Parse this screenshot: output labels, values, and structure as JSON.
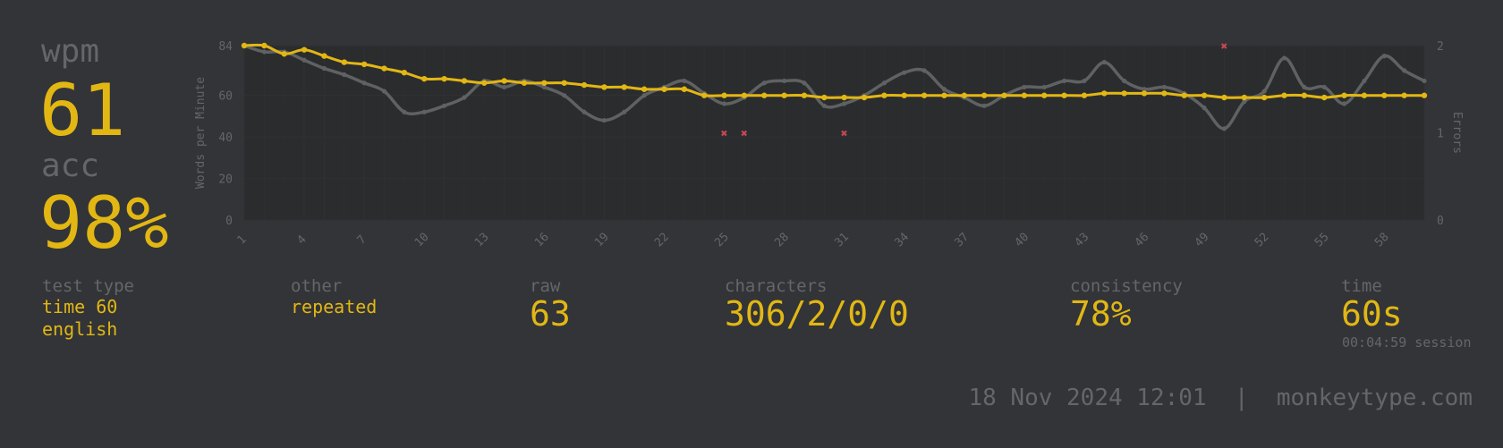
{
  "result": {
    "wpm_label": "wpm",
    "wpm_value": "61",
    "acc_label": "acc",
    "acc_value": "98%"
  },
  "stats": {
    "test_type": {
      "label": "test type",
      "line1": "time 60",
      "line2": "english"
    },
    "other": {
      "label": "other",
      "value": "repeated"
    },
    "raw": {
      "label": "raw",
      "value": "63"
    },
    "characters": {
      "label": "characters",
      "value": "306/2/0/0"
    },
    "consistency": {
      "label": "consistency",
      "value": "78%"
    },
    "time": {
      "label": "time",
      "value": "60s",
      "session": "00:04:59 session"
    }
  },
  "footer": {
    "date": "18 Nov 2024 12:01",
    "separator": "|",
    "site": "monkeytype.com"
  },
  "colors": {
    "background": "#323437",
    "accent": "#e2b714",
    "sub": "#646669",
    "raw_line": "#5f6163",
    "error": "#ca4754"
  },
  "chart_data": {
    "type": "line",
    "ylabel": "Words per Minute",
    "y2label": "Errors",
    "ylim": [
      0,
      84
    ],
    "y2lim": [
      0,
      2
    ],
    "y_ticks": [
      0,
      20,
      40,
      60,
      84
    ],
    "y2_ticks": [
      0,
      1,
      2
    ],
    "x_ticks": [
      1,
      4,
      7,
      10,
      13,
      16,
      19,
      22,
      25,
      28,
      31,
      34,
      37,
      40,
      43,
      46,
      49,
      52,
      55,
      58
    ],
    "grid": true,
    "x": [
      1,
      2,
      3,
      4,
      5,
      6,
      7,
      8,
      9,
      10,
      11,
      12,
      13,
      14,
      15,
      16,
      17,
      18,
      19,
      20,
      21,
      22,
      23,
      24,
      25,
      26,
      27,
      28,
      29,
      30,
      31,
      32,
      33,
      34,
      35,
      36,
      37,
      38,
      39,
      40,
      41,
      42,
      43,
      44,
      45,
      46,
      47,
      48,
      49,
      50,
      51,
      52,
      53,
      54,
      55,
      56,
      57,
      58,
      59,
      60
    ],
    "series": [
      {
        "values": [
          84,
          81,
          81,
          77,
          73,
          70,
          66,
          62,
          52,
          52,
          55,
          59,
          67,
          64,
          67,
          64,
          60,
          52,
          48,
          52,
          60,
          64,
          67,
          61,
          56,
          59,
          66,
          67,
          66,
          55,
          56,
          60,
          66,
          71,
          72,
          63,
          59,
          55,
          60,
          64,
          64,
          67,
          67,
          76,
          67,
          63,
          64,
          61,
          54,
          44,
          57,
          62,
          78,
          64,
          64,
          56,
          67,
          79,
          72,
          67
        ]
      },
      {
        "values": [
          84,
          84,
          80,
          82,
          79,
          76,
          75,
          73,
          71,
          68,
          68,
          67,
          66,
          67,
          66,
          66,
          66,
          65,
          64,
          64,
          63,
          63,
          63,
          60,
          60,
          60,
          60,
          60,
          60,
          59,
          59,
          59,
          60,
          60,
          60,
          60,
          60,
          60,
          60,
          60,
          60,
          60,
          60,
          61,
          61,
          61,
          61,
          60,
          60,
          59,
          59,
          59,
          60,
          60,
          59,
          60,
          60,
          60,
          60,
          60
        ]
      }
    ],
    "errors": [
      {
        "x": 25,
        "y": 1
      },
      {
        "x": 26,
        "y": 1
      },
      {
        "x": 31,
        "y": 1
      },
      {
        "x": 50,
        "y": 2
      }
    ]
  }
}
